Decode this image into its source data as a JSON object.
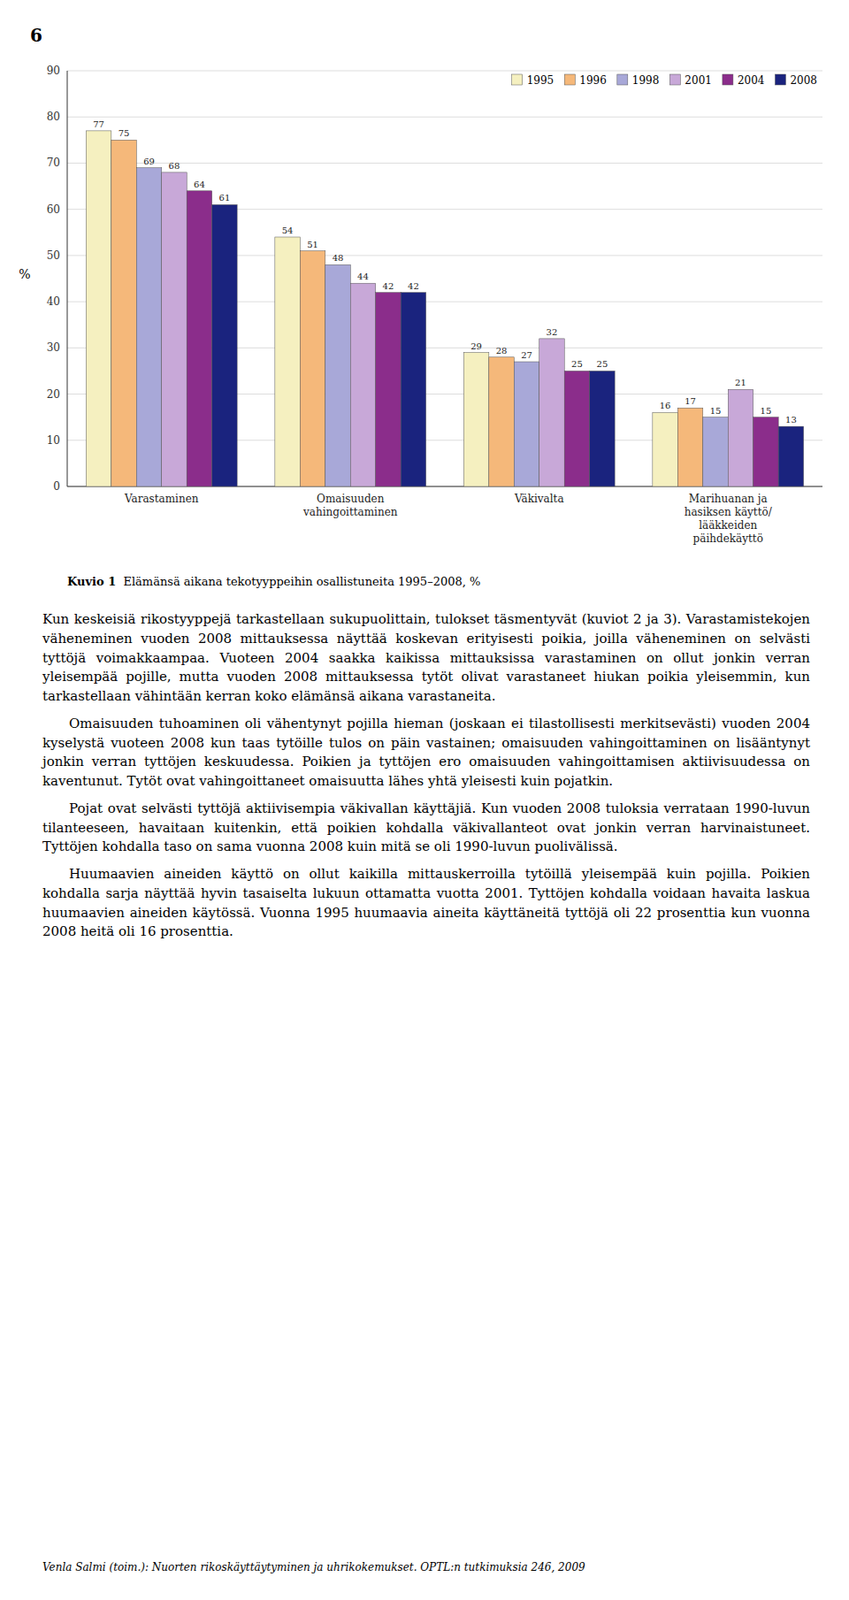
{
  "chart_data": {
    "type": "bar",
    "title": "Kuvio 1",
    "subtitle": "Elämänsä aikana tekotyyppeihin osallistuneita 1995–2008, %",
    "y_label": "%",
    "categories": [
      "Varastaminen",
      "Omaisuuden\nvahingoittaminen",
      "Väkivalta",
      "Marihuanan ja\nhasiksen käyttö/\nlääkkeiden\npäihdekäyttö"
    ],
    "series": [
      {
        "name": "1995",
        "color": "#F5F0C0",
        "values": [
          77,
          54,
          29,
          16
        ]
      },
      {
        "name": "1996",
        "color": "#F5B87A",
        "values": [
          75,
          51,
          28,
          17
        ]
      },
      {
        "name": "1998",
        "color": "#A8A8D8",
        "values": [
          69,
          48,
          27,
          15
        ]
      },
      {
        "name": "2001",
        "color": "#C8A8D8",
        "values": [
          68,
          44,
          32,
          21
        ]
      },
      {
        "name": "2004",
        "color": "#8B2D8B",
        "values": [
          64,
          42,
          25,
          15
        ]
      },
      {
        "name": "2008",
        "color": "#1A237E",
        "values": [
          61,
          42,
          25,
          13
        ]
      }
    ],
    "ylim": [
      0,
      90
    ],
    "yticks": [
      0,
      10,
      20,
      30,
      40,
      50,
      60,
      70,
      80,
      90
    ],
    "grid": true,
    "legend": "upper right",
    "data_labels": true,
    "annotations": [
      "6",
      "Kun keskeisiä rikostyyppejä tarkastellaan sukupuolittain, tulokset täsmentyvät (kuviot 2 ja 3). Varastamistekojen väheneminen vuoden 2008 mittauksessa näyttää koskevan erityisesti poikia, joilla väheneminen on selvästi tyttöjä voimakkaampaa. Vuoteen 2004 saakka kaikissa mittauksissa varastaminen on ollut jonkin verran yleisempää pojille, mutta vuoden 2008 mittauksessa tytöt olivat varastaneet hiukan poikia yleisemmin, kun tarkastellaan vähintään kerran koko elämänsä aikana varastaneita.",
      "Omaisuuden tuhoaminen oli vähentynyt pojilla hieman (joskaan ei tilastollisesti merkitsevästi) vuoden 2004 kyselystä vuoteen 2008 kun taas tytöille tulos on päin vastainen; omaisuuden vahingoittaminen on lisääntynyt jonkin verran tyttöjen keskuudessa. Poikien ja tyttöjen ero omaisuuden vahingoittamisen aktiivisuudessa on kaventunut. Tytöt ovat vahingoittaneet omaisuutta lähes yhtä yleisesti kuin pojatkin.",
      "Pojat ovat selvästi tyttöjä aktiivisempia väkivallan käyttäjiä. Kun vuoden 2008 tuloksia verrataan 1990-luvun tilanteeseen, havaitaan kuitenkin, että poikien kohdalla väkivallanteot ovat jonkin verran harvinaistuneet. Tyttöjen kohdalla taso on sama vuonna 2008 kuin mitä se oli 1990-luvun puolivälissä.",
      "Huumaavien aineiden käyttö on ollut kaikilla mittauskerroilla tytöillä yleisempää kuin pojilla. Poikien kohdalla sarja näyttää hyvin tasaiselta lukuun ottamatta vuotta 2001. Tyttöjen kohdalla voidaan havaita laskua huumaavien aineiden käytössä. Vuonna 1995 huumaavia aineita käyttäneitä tyttöjä oli 22 prosenttia kun vuonna 2008 heitä oli 16 prosenttia.",
      "Venla Salmi (toim.): Nuorten rikoskäyttäytyminen ja uhrikokemukset. OPTL:n tutkimuksia 246, 2009"
    ]
  }
}
